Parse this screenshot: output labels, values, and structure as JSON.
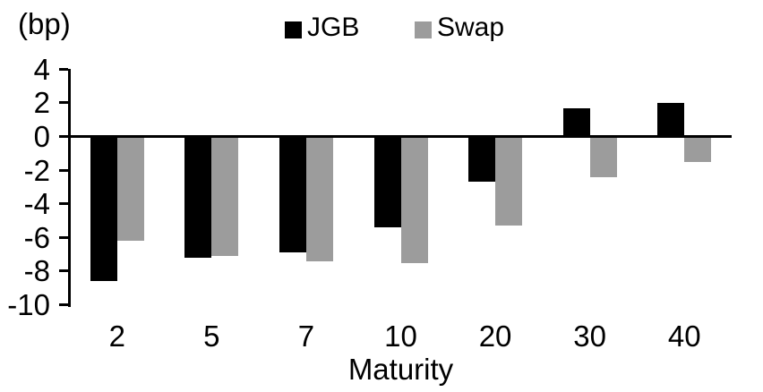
{
  "chart_data": {
    "type": "bar",
    "title": "",
    "unit_label": "(bp)",
    "xlabel": "Maturity",
    "categories": [
      "2",
      "5",
      "7",
      "10",
      "20",
      "30",
      "40"
    ],
    "series": [
      {
        "name": "JGB",
        "color": "#000000",
        "values": [
          -8.6,
          -7.2,
          -6.9,
          -5.4,
          -2.7,
          1.7,
          2.0
        ]
      },
      {
        "name": "Swap",
        "color": "#9c9c9c",
        "values": [
          -6.2,
          -7.1,
          -7.4,
          -7.5,
          -5.3,
          -2.4,
          -1.5
        ]
      }
    ],
    "yticks": [
      4,
      2,
      0,
      -2,
      -4,
      -6,
      -8,
      -10
    ],
    "ylim": [
      -10,
      4
    ],
    "legend_position": "top-center",
    "grid": false,
    "axis_color": "#000000",
    "background_color": "#ffffff"
  }
}
